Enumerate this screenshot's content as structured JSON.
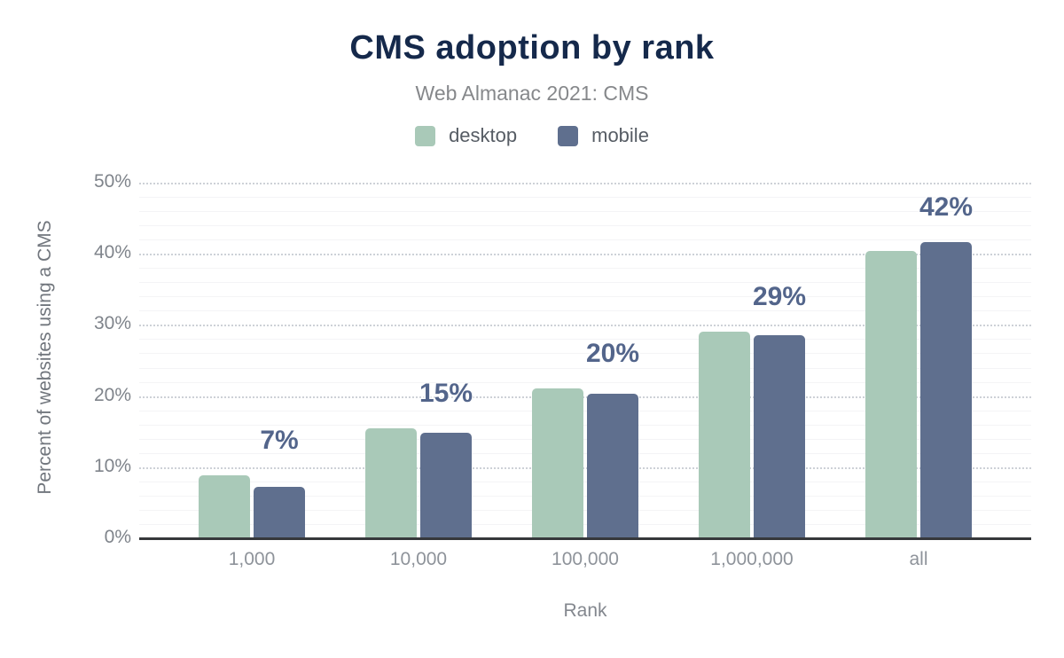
{
  "chart_data": {
    "type": "bar",
    "title": "CMS adoption by rank",
    "subtitle": "Web Almanac 2021: CMS",
    "xlabel": "Rank",
    "ylabel": "Percent of websites using a CMS",
    "categories": [
      "1,000",
      "10,000",
      "100,000",
      "1,000,000",
      "all"
    ],
    "series": [
      {
        "name": "desktop",
        "color": "#a9c9b8",
        "values": [
          8.9,
          15.5,
          21.1,
          29.0,
          40.4
        ]
      },
      {
        "name": "mobile",
        "color": "#5f6f8e",
        "values": [
          7.2,
          14.9,
          20.3,
          28.5,
          41.7
        ]
      }
    ],
    "bar_labels": [
      "7%",
      "15%",
      "20%",
      "29%",
      "42%"
    ],
    "ylim": [
      0,
      50
    ],
    "y_major_step": 10,
    "y_minor_step": 2,
    "y_tick_labels": [
      "0%",
      "10%",
      "20%",
      "30%",
      "40%",
      "50%"
    ],
    "grid": true,
    "legend_position": "top",
    "colors": {
      "title": "#15294b",
      "subtitle": "#86888b",
      "data_label": "#53658b",
      "axis_line": "#36383b",
      "major_grid": "#cdd1d7",
      "minor_grid": "#f4f4f6"
    }
  }
}
